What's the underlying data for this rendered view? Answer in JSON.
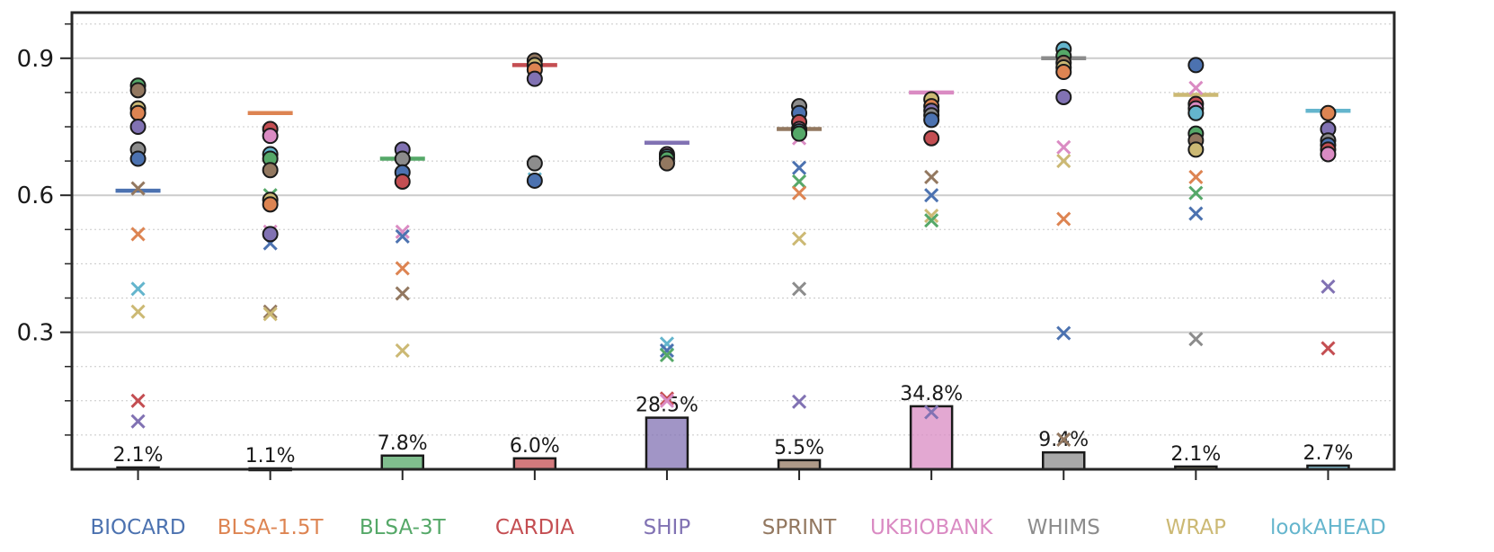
{
  "chart_data": {
    "type": "scatter",
    "title": "",
    "xlabel": "",
    "ylabel": "",
    "ylim": [
      0.0,
      1.0
    ],
    "yticks": [
      0.3,
      0.6,
      0.9
    ],
    "yticks_labels": [
      "0.3",
      "0.6",
      "0.9"
    ],
    "grid": true,
    "categories": [
      "BIOCARD",
      "BLSA-1.5T",
      "BLSA-3T",
      "CARDIA",
      "SHIP",
      "SPRINT",
      "UKBIOBANK",
      "WHIMS",
      "WRAP",
      "lookAHEAD"
    ],
    "colors": [
      "#4c72b0",
      "#dd8452",
      "#55a868",
      "#c44e52",
      "#8172b3",
      "#937860",
      "#da8bc3",
      "#8c8c8c",
      "#ccb974",
      "#64b5cd"
    ],
    "reference_lines": [
      0.61,
      0.78,
      0.68,
      0.885,
      0.715,
      0.745,
      0.825,
      0.9,
      0.82,
      0.785
    ],
    "bar_values": [
      0.004,
      0.002,
      0.03,
      0.024,
      0.113,
      0.02,
      0.138,
      0.037,
      0.006,
      0.008
    ],
    "bar_labels": [
      "2.1%",
      "1.1%",
      "7.8%",
      "6.0%",
      "28.5%",
      "5.5%",
      "34.8%",
      "9.4%",
      "2.1%",
      "2.7%"
    ],
    "circles": [
      [
        0.84,
        0.83,
        0.79,
        0.78,
        0.75,
        0.7,
        0.68
      ],
      [
        0.745,
        0.73,
        0.69,
        0.68,
        0.655,
        0.59,
        0.58,
        0.515
      ],
      [
        0.7,
        0.68,
        0.65,
        0.63
      ],
      [
        0.895,
        0.885,
        0.875,
        0.855,
        0.67,
        0.632
      ],
      [
        0.69,
        0.685,
        0.68,
        0.67
      ],
      [
        0.795,
        0.78,
        0.76,
        0.745,
        0.74,
        0.735
      ],
      [
        0.81,
        0.795,
        0.785,
        0.775,
        0.765,
        0.725
      ],
      [
        0.92,
        0.905,
        0.89,
        0.88,
        0.87,
        0.815
      ],
      [
        0.885,
        0.8,
        0.79,
        0.78,
        0.735,
        0.72,
        0.7
      ],
      [
        0.78,
        0.745,
        0.72,
        0.71,
        0.7,
        0.69
      ]
    ],
    "crosses": [
      [
        {
          "y": 0.615,
          "c": 5
        },
        {
          "y": 0.515,
          "c": 1
        },
        {
          "y": 0.395,
          "c": 9
        },
        {
          "y": 0.345,
          "c": 8
        },
        {
          "y": 0.15,
          "c": 3
        },
        {
          "y": 0.105,
          "c": 4
        }
      ],
      [
        {
          "y": 0.6,
          "c": 2
        },
        {
          "y": 0.52,
          "c": 6
        },
        {
          "y": 0.495,
          "c": 0
        },
        {
          "y": 0.345,
          "c": 5
        },
        {
          "y": 0.34,
          "c": 8
        }
      ],
      [
        {
          "y": 0.52,
          "c": 6
        },
        {
          "y": 0.51,
          "c": 0
        },
        {
          "y": 0.44,
          "c": 1
        },
        {
          "y": 0.385,
          "c": 5
        },
        {
          "y": 0.26,
          "c": 8
        }
      ],
      [
        {
          "y": 0.635,
          "c": 9
        }
      ],
      [
        {
          "y": 0.275,
          "c": 9
        },
        {
          "y": 0.26,
          "c": 0
        },
        {
          "y": 0.25,
          "c": 2
        },
        {
          "y": 0.155,
          "c": 3
        },
        {
          "y": 0.15,
          "c": 6
        }
      ],
      [
        {
          "y": 0.725,
          "c": 6
        },
        {
          "y": 0.66,
          "c": 0
        },
        {
          "y": 0.63,
          "c": 2
        },
        {
          "y": 0.605,
          "c": 1
        },
        {
          "y": 0.505,
          "c": 8
        },
        {
          "y": 0.395,
          "c": 7
        },
        {
          "y": 0.148,
          "c": 4
        }
      ],
      [
        {
          "y": 0.64,
          "c": 5
        },
        {
          "y": 0.6,
          "c": 0
        },
        {
          "y": 0.555,
          "c": 8
        },
        {
          "y": 0.545,
          "c": 2
        },
        {
          "y": 0.125,
          "c": 4
        }
      ],
      [
        {
          "y": 0.705,
          "c": 6
        },
        {
          "y": 0.675,
          "c": 8
        },
        {
          "y": 0.548,
          "c": 1
        },
        {
          "y": 0.298,
          "c": 0
        },
        {
          "y": 0.065,
          "c": 5
        }
      ],
      [
        {
          "y": 0.835,
          "c": 6
        },
        {
          "y": 0.64,
          "c": 1
        },
        {
          "y": 0.605,
          "c": 2
        },
        {
          "y": 0.56,
          "c": 0
        },
        {
          "y": 0.285,
          "c": 7
        }
      ],
      [
        {
          "y": 0.4,
          "c": 4
        },
        {
          "y": 0.265,
          "c": 3
        }
      ]
    ]
  }
}
